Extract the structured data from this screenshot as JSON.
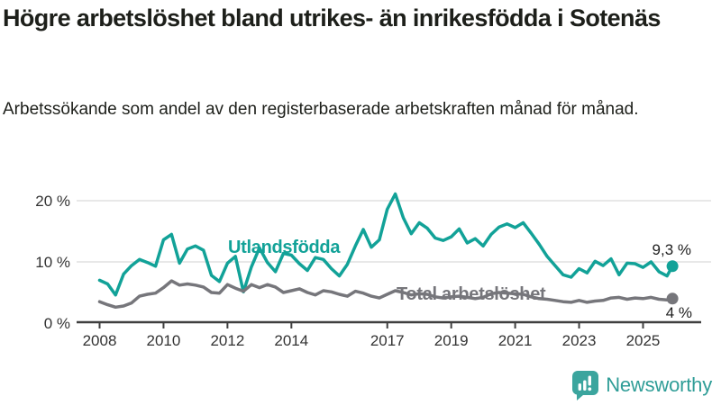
{
  "header": {
    "title": "Högre arbetslöshet bland utrikes- än inrikesfödda i Sotenäs",
    "subtitle": "Arbetssökande som andel av den registerbaserade arbetskraften månad för månad."
  },
  "footer": {
    "brand": "Newsworthy",
    "logo_icon": "bar-chart-speech-bubble-icon"
  },
  "colors": {
    "foreign_born_line": "#12a298",
    "total_line": "#76767b",
    "axis": "#3f3f3f",
    "gridline": "#e0e0e0",
    "text": "#1d1f1a",
    "brand_teal": "#3ba59e"
  },
  "chart_data": {
    "type": "line",
    "title": "",
    "xlabel": "",
    "ylabel": "",
    "grid": "horizontal-only",
    "x_unit": "decimal_year (quarterly samples read from monthly curve)",
    "x_start": 2008.0,
    "x_step": 0.25,
    "x_last_point": 2025.92,
    "xlim": [
      2007.6,
      2026.2
    ],
    "ylim": [
      0,
      22
    ],
    "x_tick_labels": [
      "2008",
      "2010",
      "2012",
      "2014",
      "2017",
      "2019",
      "2021",
      "2023",
      "2025"
    ],
    "x_tick_values": [
      2008,
      2010,
      2012,
      2014,
      2017,
      2019,
      2021,
      2023,
      2025
    ],
    "y_ticks": [
      {
        "v": 0,
        "label": "0 %"
      },
      {
        "v": 10,
        "label": "10 %"
      },
      {
        "v": 20,
        "label": "20 %"
      }
    ],
    "gridline_values": [
      10,
      20
    ],
    "series": [
      {
        "name": "Utlandsfödda",
        "color": "#12a298",
        "end_label": "9,3 %",
        "end_value": 9.3,
        "values": [
          7.0,
          6.4,
          4.6,
          8.0,
          9.4,
          10.4,
          9.9,
          9.3,
          13.6,
          14.5,
          9.8,
          12.1,
          12.6,
          11.9,
          7.8,
          6.8,
          9.8,
          10.9,
          5.1,
          9.2,
          12.3,
          9.9,
          8.4,
          11.4,
          11.1,
          9.7,
          8.6,
          10.7,
          10.4,
          8.9,
          7.7,
          9.6,
          12.6,
          15.3,
          12.4,
          13.6,
          18.6,
          21.1,
          17.2,
          14.6,
          16.4,
          15.5,
          13.9,
          13.5,
          14.1,
          15.4,
          13.1,
          13.8,
          12.6,
          14.5,
          15.7,
          16.2,
          15.6,
          16.4,
          14.7,
          12.9,
          10.9,
          9.4,
          7.9,
          7.5,
          8.9,
          8.2,
          10.1,
          9.4,
          10.5,
          7.9,
          9.8,
          9.7,
          9.1,
          10.0,
          8.4,
          7.7,
          9.3
        ]
      },
      {
        "name": "Total arbetslöshet",
        "color": "#76767b",
        "end_label": "4 %",
        "end_value": 4.0,
        "values": [
          3.5,
          3.0,
          2.6,
          2.8,
          3.3,
          4.4,
          4.7,
          4.9,
          5.8,
          6.9,
          6.2,
          6.4,
          6.2,
          5.9,
          5.0,
          4.9,
          6.3,
          5.7,
          5.2,
          6.3,
          5.8,
          6.3,
          5.9,
          5.0,
          5.3,
          5.6,
          5.0,
          4.6,
          5.3,
          5.1,
          4.7,
          4.4,
          5.2,
          4.9,
          4.4,
          4.1,
          4.7,
          5.3,
          5.0,
          4.6,
          4.8,
          4.7,
          4.3,
          4.1,
          4.3,
          4.4,
          4.2,
          4.0,
          4.2,
          4.8,
          5.0,
          4.9,
          4.8,
          4.7,
          4.3,
          4.0,
          3.9,
          3.7,
          3.5,
          3.4,
          3.7,
          3.4,
          3.6,
          3.7,
          4.1,
          4.2,
          3.9,
          4.1,
          4.0,
          4.2,
          3.9,
          3.8,
          4.0
        ]
      }
    ],
    "legend_position": "labels-on-chart"
  }
}
